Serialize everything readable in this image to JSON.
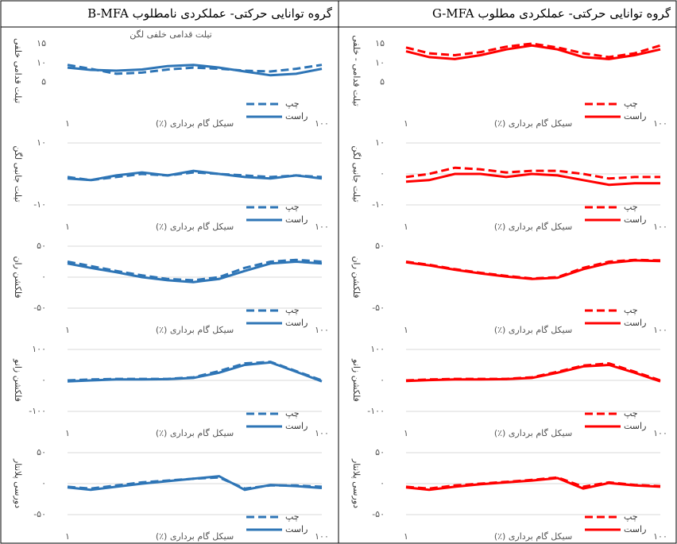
{
  "header": {
    "left": "گروه توانایی حرکتی- عملکردی نامطلوب B-MFA",
    "right": "گروه توانایی حرکتی- عملکردی مطلوب G-MFA"
  },
  "chart_data": [
    {
      "type": "line",
      "title": "تیلت قدامی خلفی لگن",
      "ylabel": "تیلت قدامی خلفی",
      "xlabel": "سیکل گام برداری (٪)",
      "x": [
        1,
        10,
        20,
        30,
        40,
        50,
        60,
        70,
        80,
        90,
        100
      ],
      "xlim": [
        1,
        100
      ],
      "xticks": [
        {
          "value": 1,
          "label": "۱"
        },
        {
          "value": 100,
          "label": "۱۰۰"
        }
      ],
      "ylim": [
        0,
        16
      ],
      "yticks": [
        {
          "value": 5,
          "label": "۵"
        },
        {
          "value": 10,
          "label": "۱۰"
        },
        {
          "value": 15,
          "label": "۱۵"
        }
      ],
      "grid": false,
      "series": [
        {
          "name": "چپ",
          "color": "#2e75b6",
          "dash": true,
          "values": [
            9.5,
            8.5,
            7.2,
            7.5,
            8.3,
            8.8,
            8.5,
            8,
            7.8,
            8.5,
            9.5
          ]
        },
        {
          "name": "راست",
          "color": "#2e75b6",
          "dash": false,
          "values": [
            8.8,
            8.2,
            8,
            8.3,
            9.2,
            9.5,
            8.8,
            7.8,
            6.8,
            7.2,
            8.5
          ]
        }
      ]
    },
    {
      "type": "line",
      "ylabel": "تیلت قدامی - خلفی",
      "xlabel": "سیکل گام برداری (٪)",
      "x": [
        1,
        10,
        20,
        30,
        40,
        50,
        60,
        70,
        80,
        90,
        100
      ],
      "xlim": [
        1,
        100
      ],
      "xticks": [
        {
          "value": 1,
          "label": "۱"
        },
        {
          "value": 100,
          "label": "۱۰۰"
        }
      ],
      "ylim": [
        0,
        16
      ],
      "yticks": [
        {
          "value": 5,
          "label": "۵"
        },
        {
          "value": 10,
          "label": "۱۰"
        },
        {
          "value": 15,
          "label": "۱۵"
        }
      ],
      "grid": false,
      "series": [
        {
          "name": "چپ",
          "color": "#ff0000",
          "dash": true,
          "values": [
            14,
            12.5,
            12,
            12.8,
            14.2,
            15,
            14,
            12.5,
            11.5,
            12.5,
            14.5
          ]
        },
        {
          "name": "راست",
          "color": "#ff0000",
          "dash": false,
          "values": [
            13,
            11.5,
            11,
            12,
            13.5,
            14.5,
            13.5,
            11.5,
            11,
            12,
            13.5
          ]
        }
      ]
    },
    {
      "type": "line",
      "ylabel": "تیلت جانبی لگن",
      "xlabel": "سیکل گام برداری (٪)",
      "x": [
        1,
        10,
        20,
        30,
        40,
        50,
        60,
        70,
        80,
        90,
        100
      ],
      "xlim": [
        1,
        100
      ],
      "xticks": [
        {
          "value": 1,
          "label": "۱"
        },
        {
          "value": 100,
          "label": "۱۰۰"
        }
      ],
      "ylim": [
        -10,
        10
      ],
      "yticks": [
        {
          "value": -10,
          "label": "-۱۰"
        },
        {
          "value": 10,
          "label": "۱۰"
        }
      ],
      "grid": true,
      "series": [
        {
          "name": "چپ",
          "color": "#2e75b6",
          "dash": true,
          "values": [
            -1,
            -2,
            -1,
            0,
            -0.5,
            0.5,
            0,
            -0.5,
            -1,
            -0.5,
            -1
          ]
        },
        {
          "name": "راست",
          "color": "#2e75b6",
          "dash": false,
          "values": [
            -1.5,
            -2,
            -0.5,
            0.5,
            -0.5,
            1,
            0,
            -1,
            -1.5,
            -0.5,
            -1.5
          ]
        }
      ]
    },
    {
      "type": "line",
      "ylabel": "تیلت جانبی لگن",
      "xlabel": "سیکل گام برداری (٪)",
      "x": [
        1,
        10,
        20,
        30,
        40,
        50,
        60,
        70,
        80,
        90,
        100
      ],
      "xlim": [
        1,
        100
      ],
      "xticks": [
        {
          "value": 1,
          "label": "۱"
        },
        {
          "value": 100,
          "label": "۱۰۰"
        }
      ],
      "ylim": [
        -10,
        10
      ],
      "yticks": [
        {
          "value": -10,
          "label": "-۱۰"
        },
        {
          "value": 0,
          "label": "۰"
        },
        {
          "value": 10,
          "label": "۱۰"
        }
      ],
      "grid": true,
      "series": [
        {
          "name": "چپ",
          "color": "#ff0000",
          "dash": true,
          "values": [
            -1,
            0,
            2,
            1.5,
            0.5,
            1,
            1,
            0,
            -1.5,
            -1,
            -1
          ]
        },
        {
          "name": "راست",
          "color": "#ff0000",
          "dash": false,
          "values": [
            -2.5,
            -2,
            0,
            0,
            -1,
            0,
            -0.5,
            -2,
            -3.5,
            -3,
            -3
          ]
        }
      ]
    },
    {
      "type": "line",
      "ylabel": "فلکشن ران",
      "xlabel": "سیکل گام برداری (٪)",
      "x": [
        1,
        10,
        20,
        30,
        40,
        50,
        60,
        70,
        80,
        90,
        100
      ],
      "xlim": [
        1,
        100
      ],
      "xticks": [
        {
          "value": 1,
          "label": "۱"
        },
        {
          "value": 100,
          "label": "۱۰۰"
        }
      ],
      "ylim": [
        -50,
        50
      ],
      "yticks": [
        {
          "value": -50,
          "label": "-۵۰"
        },
        {
          "value": 0,
          "label": "۰"
        },
        {
          "value": 50,
          "label": "۵۰"
        }
      ],
      "grid": true,
      "series": [
        {
          "name": "چپ",
          "color": "#2e75b6",
          "dash": true,
          "values": [
            25,
            18,
            10,
            3,
            -3,
            -5,
            0,
            15,
            25,
            28,
            25
          ]
        },
        {
          "name": "راست",
          "color": "#2e75b6",
          "dash": false,
          "values": [
            22,
            15,
            8,
            0,
            -5,
            -8,
            -3,
            10,
            22,
            25,
            22
          ]
        }
      ]
    },
    {
      "type": "line",
      "ylabel": "فلکشن ران",
      "xlabel": "سیکل گام برداری (٪)",
      "x": [
        1,
        10,
        20,
        30,
        40,
        50,
        60,
        70,
        80,
        90,
        100
      ],
      "xlim": [
        1,
        100
      ],
      "xticks": [
        {
          "value": 1,
          "label": "۱"
        },
        {
          "value": 100,
          "label": "۱۰۰"
        }
      ],
      "ylim": [
        -50,
        50
      ],
      "yticks": [
        {
          "value": -50,
          "label": "-۵۰"
        },
        {
          "value": 50,
          "label": "۵۰"
        }
      ],
      "grid": false,
      "series": [
        {
          "name": "چپ",
          "color": "#ff0000",
          "dash": true,
          "values": [
            25,
            20,
            13,
            7,
            2,
            -2,
            0,
            15,
            25,
            28,
            27
          ]
        },
        {
          "name": "راست",
          "color": "#ff0000",
          "dash": false,
          "values": [
            24,
            19,
            12,
            6,
            1,
            -3,
            -1,
            13,
            23,
            27,
            26
          ]
        }
      ]
    },
    {
      "type": "line",
      "ylabel": "فلکشن زانو",
      "xlabel": "سیکل گام برداری (٪)",
      "x": [
        1,
        10,
        20,
        30,
        40,
        50,
        60,
        70,
        80,
        90,
        100
      ],
      "xlim": [
        1,
        100
      ],
      "xticks": [
        {
          "value": 1,
          "label": "۱"
        },
        {
          "value": 100,
          "label": "۱۰۰"
        }
      ],
      "ylim": [
        -100,
        100
      ],
      "yticks": [
        {
          "value": -100,
          "label": "-۱۰۰"
        },
        {
          "value": 0,
          "label": "۰"
        },
        {
          "value": 100,
          "label": "۱۰۰"
        }
      ],
      "grid": true,
      "series": [
        {
          "name": "چپ",
          "color": "#2e75b6",
          "dash": true,
          "values": [
            0,
            3,
            5,
            5,
            5,
            10,
            30,
            55,
            60,
            30,
            0
          ]
        },
        {
          "name": "راست",
          "color": "#2e75b6",
          "dash": false,
          "values": [
            -3,
            0,
            3,
            3,
            4,
            8,
            25,
            50,
            58,
            28,
            -3
          ]
        }
      ]
    },
    {
      "type": "line",
      "ylabel": "فلکشن زانو",
      "xlabel": "سیکل گام برداری (٪)",
      "x": [
        1,
        10,
        20,
        30,
        40,
        50,
        60,
        70,
        80,
        90,
        100
      ],
      "xlim": [
        1,
        100
      ],
      "xticks": [
        {
          "value": 1,
          "label": "۱"
        },
        {
          "value": 100,
          "label": "۱۰۰"
        }
      ],
      "ylim": [
        -100,
        100
      ],
      "yticks": [
        {
          "value": -100,
          "label": "-۱۰۰"
        },
        {
          "value": 0,
          "label": "۰"
        },
        {
          "value": 100,
          "label": "۱۰۰"
        }
      ],
      "grid": true,
      "series": [
        {
          "name": "چپ",
          "color": "#ff0000",
          "dash": true,
          "values": [
            0,
            3,
            5,
            5,
            5,
            10,
            28,
            48,
            55,
            28,
            0
          ]
        },
        {
          "name": "راست",
          "color": "#ff0000",
          "dash": false,
          "values": [
            -2,
            1,
            3,
            3,
            4,
            8,
            25,
            45,
            50,
            25,
            -3
          ]
        }
      ]
    },
    {
      "type": "line",
      "ylabel": "دورسی پلانتار",
      "xlabel": "سیکل گام برداری (٪)",
      "x": [
        1,
        10,
        20,
        30,
        40,
        50,
        60,
        70,
        80,
        90,
        100
      ],
      "xlim": [
        1,
        100
      ],
      "xticks": [
        {
          "value": 1,
          "label": "۱"
        },
        {
          "value": 100,
          "label": "۱۰۰"
        }
      ],
      "ylim": [
        -50,
        50
      ],
      "yticks": [
        {
          "value": -50,
          "label": "-۵۰"
        },
        {
          "value": 0,
          "label": "۰"
        },
        {
          "value": 50,
          "label": "۵۰"
        }
      ],
      "grid": true,
      "series": [
        {
          "name": "چپ",
          "color": "#2e75b6",
          "dash": true,
          "values": [
            -5,
            -8,
            -3,
            2,
            5,
            8,
            10,
            -8,
            -3,
            -3,
            -5
          ]
        },
        {
          "name": "راست",
          "color": "#2e75b6",
          "dash": false,
          "values": [
            -6,
            -10,
            -5,
            0,
            4,
            8,
            12,
            -10,
            -2,
            -4,
            -7
          ]
        }
      ]
    },
    {
      "type": "line",
      "ylabel": "دورسی پلانتار",
      "xlabel": "سیکل گام برداری (٪)",
      "x": [
        1,
        10,
        20,
        30,
        40,
        50,
        60,
        70,
        80,
        90,
        100
      ],
      "xlim": [
        1,
        100
      ],
      "xticks": [
        {
          "value": 1,
          "label": "۱"
        },
        {
          "value": 100,
          "label": "۱۰۰"
        }
      ],
      "ylim": [
        -50,
        50
      ],
      "yticks": [
        {
          "value": -50,
          "label": "-۵۰"
        },
        {
          "value": 0,
          "label": "۰"
        },
        {
          "value": 50,
          "label": "۵۰"
        }
      ],
      "grid": true,
      "series": [
        {
          "name": "چپ",
          "color": "#ff0000",
          "dash": true,
          "values": [
            -5,
            -8,
            -3,
            0,
            3,
            6,
            10,
            -5,
            2,
            -2,
            -4
          ]
        },
        {
          "name": "راست",
          "color": "#ff0000",
          "dash": false,
          "values": [
            -6,
            -10,
            -5,
            -1,
            2,
            5,
            9,
            -8,
            1,
            -3,
            -5
          ]
        }
      ]
    }
  ]
}
